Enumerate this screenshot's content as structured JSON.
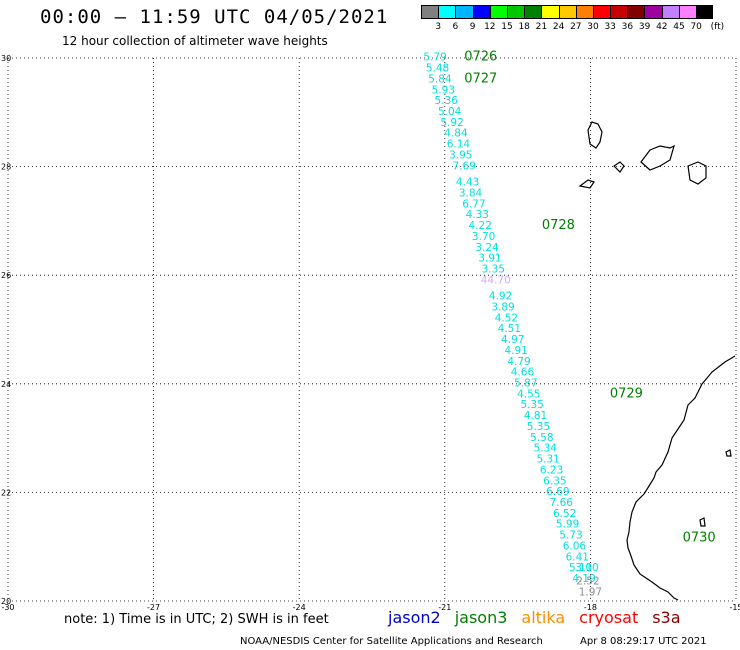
{
  "header": {
    "title": "00:00 – 11:59 UTC 04/05/2021",
    "subtitle": "12 hour collection of altimeter wave heights"
  },
  "legend": {
    "unit": "(ft)",
    "colors": [
      "#808080",
      "#00ffff",
      "#00b4ff",
      "#0000ff",
      "#00ff00",
      "#00c800",
      "#008000",
      "#ffff00",
      "#ffc800",
      "#ff8000",
      "#ff0000",
      "#c80000",
      "#800000",
      "#a000a0",
      "#c080ff",
      "#ff80ff",
      "#000000"
    ],
    "labels": [
      "3",
      "6",
      "9",
      "12",
      "15",
      "18",
      "21",
      "24",
      "27",
      "30",
      "33",
      "36",
      "39",
      "42",
      "45",
      "70"
    ]
  },
  "axes": {
    "y_ticks": [
      "30",
      "28",
      "26",
      "24",
      "22",
      "20"
    ],
    "x_ticks": [
      "-30",
      "-27",
      "-24",
      "-21",
      "-18",
      "-15"
    ]
  },
  "chart_data": {
    "type": "scatter",
    "x_range": [
      -30,
      -15
    ],
    "y_range": [
      20,
      30
    ],
    "grid": true,
    "track_points": [
      {
        "value": "5.79",
        "lon": -21.2,
        "lat": 29.95,
        "color": "#00e0e0"
      },
      {
        "value": "5.48",
        "lon": -21.15,
        "lat": 29.75,
        "color": "#00e0e0"
      },
      {
        "value": "5.84",
        "lon": -21.1,
        "lat": 29.55,
        "color": "#00e0e0"
      },
      {
        "value": "5.93",
        "lon": -21.03,
        "lat": 29.35,
        "color": "#00e0e0"
      },
      {
        "value": "5.36",
        "lon": -20.97,
        "lat": 29.15,
        "color": "#00e0e0"
      },
      {
        "value": "5.04",
        "lon": -20.9,
        "lat": 28.95,
        "color": "#00e0e0"
      },
      {
        "value": "5.92",
        "lon": -20.85,
        "lat": 28.75,
        "color": "#00e0e0"
      },
      {
        "value": "4.84",
        "lon": -20.77,
        "lat": 28.55,
        "color": "#00e0e0"
      },
      {
        "value": "6.14",
        "lon": -20.72,
        "lat": 28.35,
        "color": "#00e0e0"
      },
      {
        "value": "3.95",
        "lon": -20.67,
        "lat": 28.15,
        "color": "#00e0e0"
      },
      {
        "value": "7.69",
        "lon": -20.6,
        "lat": 27.95,
        "color": "#00e0e0"
      },
      {
        "value": "4.43",
        "lon": -20.53,
        "lat": 27.65,
        "color": "#00e0e0"
      },
      {
        "value": "3.84",
        "lon": -20.47,
        "lat": 27.45,
        "color": "#00e0e0"
      },
      {
        "value": "6.77",
        "lon": -20.4,
        "lat": 27.25,
        "color": "#00e0e0"
      },
      {
        "value": "4.33",
        "lon": -20.33,
        "lat": 27.05,
        "color": "#00e0e0"
      },
      {
        "value": "4.22",
        "lon": -20.27,
        "lat": 26.85,
        "color": "#00e0e0"
      },
      {
        "value": "3.70",
        "lon": -20.2,
        "lat": 26.65,
        "color": "#00e0e0"
      },
      {
        "value": "3.24",
        "lon": -20.13,
        "lat": 26.45,
        "color": "#00e0e0"
      },
      {
        "value": "3.91",
        "lon": -20.07,
        "lat": 26.25,
        "color": "#00e0e0"
      },
      {
        "value": "3.35",
        "lon": -20.0,
        "lat": 26.05,
        "color": "#00e0e0"
      },
      {
        "value": "44.70",
        "lon": -19.95,
        "lat": 25.85,
        "color": "#d8a8ff"
      },
      {
        "value": "4.92",
        "lon": -19.85,
        "lat": 25.55,
        "color": "#00e0e0"
      },
      {
        "value": "3.89",
        "lon": -19.8,
        "lat": 25.35,
        "color": "#00e0e0"
      },
      {
        "value": "4.52",
        "lon": -19.73,
        "lat": 25.15,
        "color": "#00e0e0"
      },
      {
        "value": "4.51",
        "lon": -19.67,
        "lat": 24.95,
        "color": "#00e0e0"
      },
      {
        "value": "4.97",
        "lon": -19.6,
        "lat": 24.75,
        "color": "#00e0e0"
      },
      {
        "value": "4.91",
        "lon": -19.53,
        "lat": 24.55,
        "color": "#00e0e0"
      },
      {
        "value": "4.79",
        "lon": -19.47,
        "lat": 24.35,
        "color": "#00e0e0"
      },
      {
        "value": "4.66",
        "lon": -19.4,
        "lat": 24.15,
        "color": "#00e0e0"
      },
      {
        "value": "5.87",
        "lon": -19.33,
        "lat": 23.95,
        "color": "#00e0e0"
      },
      {
        "value": "4.55",
        "lon": -19.27,
        "lat": 23.75,
        "color": "#00e0e0"
      },
      {
        "value": "5.35",
        "lon": -19.2,
        "lat": 23.55,
        "color": "#00e0e0"
      },
      {
        "value": "4.81",
        "lon": -19.13,
        "lat": 23.35,
        "color": "#00e0e0"
      },
      {
        "value": "5.35",
        "lon": -19.07,
        "lat": 23.15,
        "color": "#00e0e0"
      },
      {
        "value": "5.58",
        "lon": -19.0,
        "lat": 22.95,
        "color": "#00e0e0"
      },
      {
        "value": "5.34",
        "lon": -18.93,
        "lat": 22.75,
        "color": "#00e0e0"
      },
      {
        "value": "5.31",
        "lon": -18.87,
        "lat": 22.55,
        "color": "#00e0e0"
      },
      {
        "value": "6.23",
        "lon": -18.8,
        "lat": 22.35,
        "color": "#00e0e0"
      },
      {
        "value": "6.35",
        "lon": -18.73,
        "lat": 22.15,
        "color": "#00e0e0"
      },
      {
        "value": "6.69",
        "lon": -18.67,
        "lat": 21.95,
        "color": "#00e0e0"
      },
      {
        "value": "7.66",
        "lon": -18.6,
        "lat": 21.75,
        "color": "#00e0e0"
      },
      {
        "value": "6.52",
        "lon": -18.53,
        "lat": 21.55,
        "color": "#00e0e0"
      },
      {
        "value": "5.99",
        "lon": -18.47,
        "lat": 21.35,
        "color": "#00e0e0"
      },
      {
        "value": "5.73",
        "lon": -18.4,
        "lat": 21.15,
        "color": "#00e0e0"
      },
      {
        "value": "6.06",
        "lon": -18.33,
        "lat": 20.95,
        "color": "#00e0e0"
      },
      {
        "value": "6.41",
        "lon": -18.27,
        "lat": 20.75,
        "color": "#00e0e0"
      },
      {
        "value": "5.11",
        "lon": -18.2,
        "lat": 20.55,
        "color": "#00e0e0"
      },
      {
        "value": "4.19",
        "lon": -18.13,
        "lat": 20.35,
        "color": "#00e0e0"
      },
      {
        "value": "3.00",
        "lon": -18.07,
        "lat": 20.55,
        "color": "#00e0e0"
      },
      {
        "value": "2.52",
        "lon": -18.05,
        "lat": 20.3,
        "color": "#909090"
      },
      {
        "value": "1.97",
        "lon": -18.0,
        "lat": 20.1,
        "color": "#909090"
      }
    ],
    "pass_times": [
      {
        "label": "0726",
        "lon": -20.6,
        "lat": 29.95
      },
      {
        "label": "0727",
        "lon": -20.6,
        "lat": 29.55
      },
      {
        "label": "0728",
        "lon": -19.0,
        "lat": 26.85
      },
      {
        "label": "0729",
        "lon": -17.6,
        "lat": 23.75
      },
      {
        "label": "0730",
        "lon": -16.1,
        "lat": 21.1
      }
    ]
  },
  "footer": {
    "note": "note: 1) Time is in UTC; 2) SWH is in feet",
    "satellites": [
      {
        "name": "jason2",
        "color": "#0000cc"
      },
      {
        "name": "jason3",
        "color": "#008000"
      },
      {
        "name": "altika",
        "color": "#ff8c00"
      },
      {
        "name": "cryosat",
        "color": "#ff0000"
      },
      {
        "name": "s3a",
        "color": "#8b0000"
      }
    ],
    "credit": "NOAA/NESDIS Center for Satellite Applications and Research",
    "timestamp": "Apr  8 08:29:17 UTC 2021"
  }
}
